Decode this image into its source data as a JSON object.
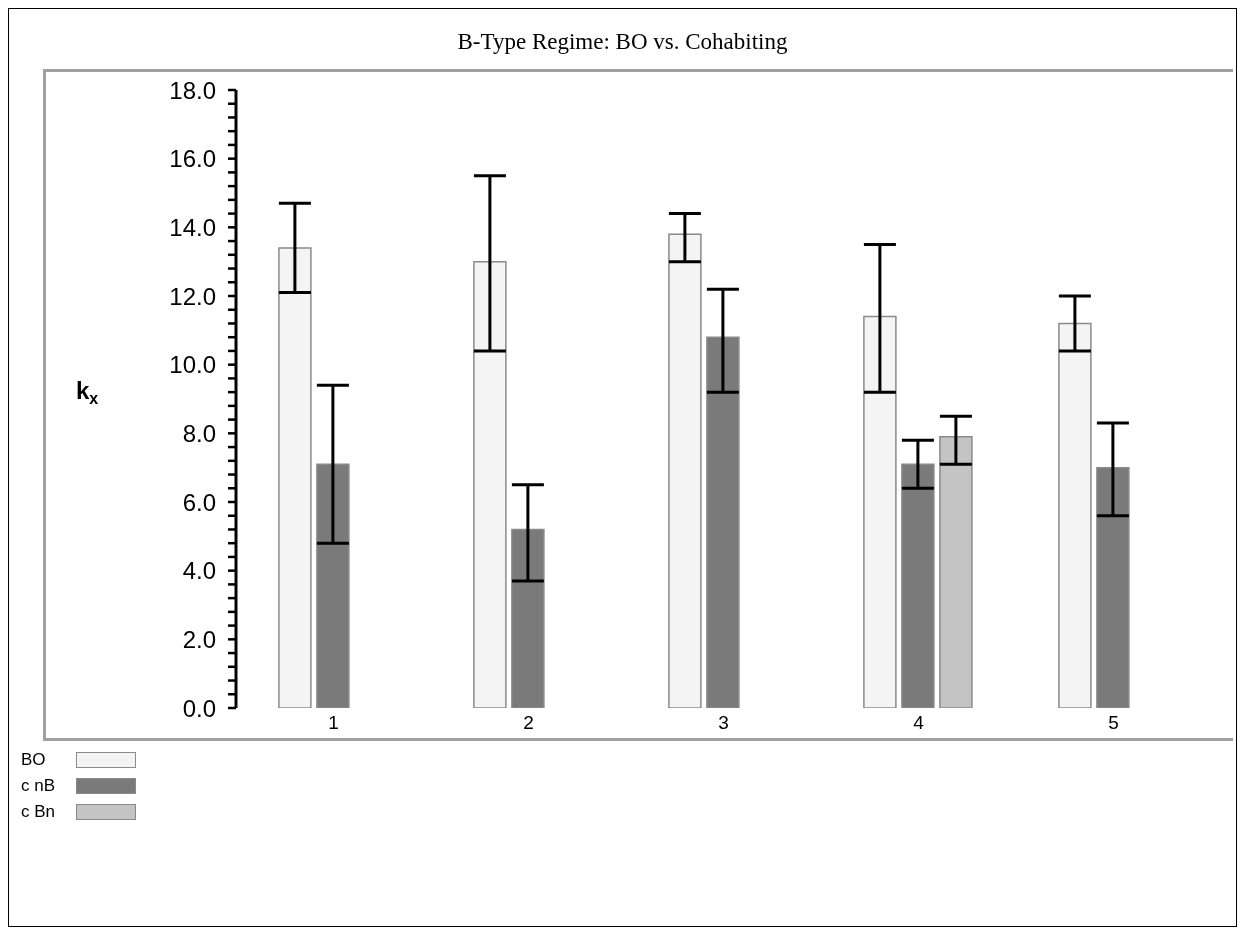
{
  "chart_data": {
    "type": "bar",
    "title": "B-Type Regime: BO vs. Cohabiting",
    "ylabel": "k$_{x}$",
    "categories": [
      "1",
      "2",
      "3",
      "4",
      "5"
    ],
    "series": [
      {
        "name": "BO",
        "color": "#f4f4f4",
        "values": [
          13.4,
          13.0,
          13.8,
          11.4,
          11.2
        ],
        "errors": [
          [
            12.1,
            14.7
          ],
          [
            10.4,
            15.5
          ],
          [
            13.0,
            14.4
          ],
          [
            9.2,
            13.5
          ],
          [
            10.4,
            12.0
          ]
        ]
      },
      {
        "name": "c nB",
        "color": "#7a7a7a",
        "values": [
          7.1,
          5.2,
          10.8,
          7.1,
          7.0
        ],
        "errors": [
          [
            4.8,
            9.4
          ],
          [
            3.7,
            6.5
          ],
          [
            9.2,
            12.2
          ],
          [
            6.4,
            7.8
          ],
          [
            5.6,
            8.3
          ]
        ]
      },
      {
        "name": "c Bn",
        "color": "#c4c4c4",
        "values": [
          null,
          null,
          null,
          7.9,
          null
        ],
        "errors": [
          null,
          null,
          null,
          [
            7.1,
            8.5
          ],
          null
        ]
      }
    ],
    "ylim": [
      0,
      18
    ],
    "yticks": [
      {
        "value": 0,
        "label": "0.0"
      },
      {
        "value": 0.4,
        "label": null
      },
      {
        "value": 0.8,
        "label": null
      },
      {
        "value": 1.2,
        "label": null
      },
      {
        "value": 1.6,
        "label": null
      },
      {
        "value": 2,
        "label": "2.0"
      },
      {
        "value": 2.4,
        "label": null
      },
      {
        "value": 2.8,
        "label": null
      },
      {
        "value": 3.2,
        "label": null
      },
      {
        "value": 3.6,
        "label": null
      },
      {
        "value": 4,
        "label": "4.0"
      },
      {
        "value": 4.4,
        "label": null
      },
      {
        "value": 4.8,
        "label": null
      },
      {
        "value": 5.2,
        "label": null
      },
      {
        "value": 5.6,
        "label": null
      },
      {
        "value": 6,
        "label": "6.0"
      },
      {
        "value": 6.4,
        "label": null
      },
      {
        "value": 6.8,
        "label": null
      },
      {
        "value": 7.2,
        "label": null
      },
      {
        "value": 7.6,
        "label": null
      },
      {
        "value": 8,
        "label": "8.0"
      },
      {
        "value": 8.4,
        "label": null
      },
      {
        "value": 8.8,
        "label": null
      },
      {
        "value": 9.2,
        "label": null
      },
      {
        "value": 9.6,
        "label": null
      },
      {
        "value": 10,
        "label": "10.0"
      },
      {
        "value": 10.4,
        "label": null
      },
      {
        "value": 10.8,
        "label": null
      },
      {
        "value": 11.2,
        "label": null
      },
      {
        "value": 11.6,
        "label": null
      },
      {
        "value": 12,
        "label": "12.0"
      },
      {
        "value": 12.4,
        "label": null
      },
      {
        "value": 12.8,
        "label": null
      },
      {
        "value": 13.2,
        "label": null
      },
      {
        "value": 13.6,
        "label": null
      },
      {
        "value": 14,
        "label": "14.0"
      },
      {
        "value": 14.4,
        "label": null
      },
      {
        "value": 14.8,
        "label": null
      },
      {
        "value": 15.2,
        "label": null
      },
      {
        "value": 15.6,
        "label": null
      },
      {
        "value": 16,
        "label": "16.0"
      },
      {
        "value": 16.4,
        "label": null
      },
      {
        "value": 16.8,
        "label": null
      },
      {
        "value": 17.2,
        "label": null
      },
      {
        "value": 17.6,
        "label": null
      },
      {
        "value": 18,
        "label": "18.0"
      }
    ],
    "grid": false,
    "legend": "bottom left"
  }
}
